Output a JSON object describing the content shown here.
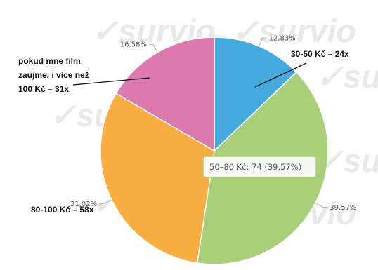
{
  "chart_data": {
    "type": "pie",
    "slices": [
      {
        "key": "30-50",
        "label": "30-50 Kč – 24x",
        "count": 24,
        "percent": 12.83,
        "percent_label": "12,83%",
        "color": "#45ABDE"
      },
      {
        "key": "50-80",
        "label": "50–80 Kč",
        "count": 74,
        "percent": 39.57,
        "percent_label": "39,57%",
        "color": "#A9CF7A"
      },
      {
        "key": "80-100",
        "label": "80-100 Kč – 58x",
        "count": 58,
        "percent": 31.02,
        "percent_label": "31,02%",
        "color": "#F8AE40"
      },
      {
        "key": "100plus",
        "label": "pokud mne film zaujme, i více než 100 Kč – 31x",
        "label_lines": [
          "pokud mne film",
          "zaujme, i více než",
          "100 Kč – 31x"
        ],
        "count": 31,
        "percent": 16.58,
        "percent_label": "16,58%",
        "color": "#DD79AC"
      }
    ],
    "tooltip": {
      "text": "50–80 Kč: 74 (39,57%)"
    },
    "watermark": "survio"
  }
}
